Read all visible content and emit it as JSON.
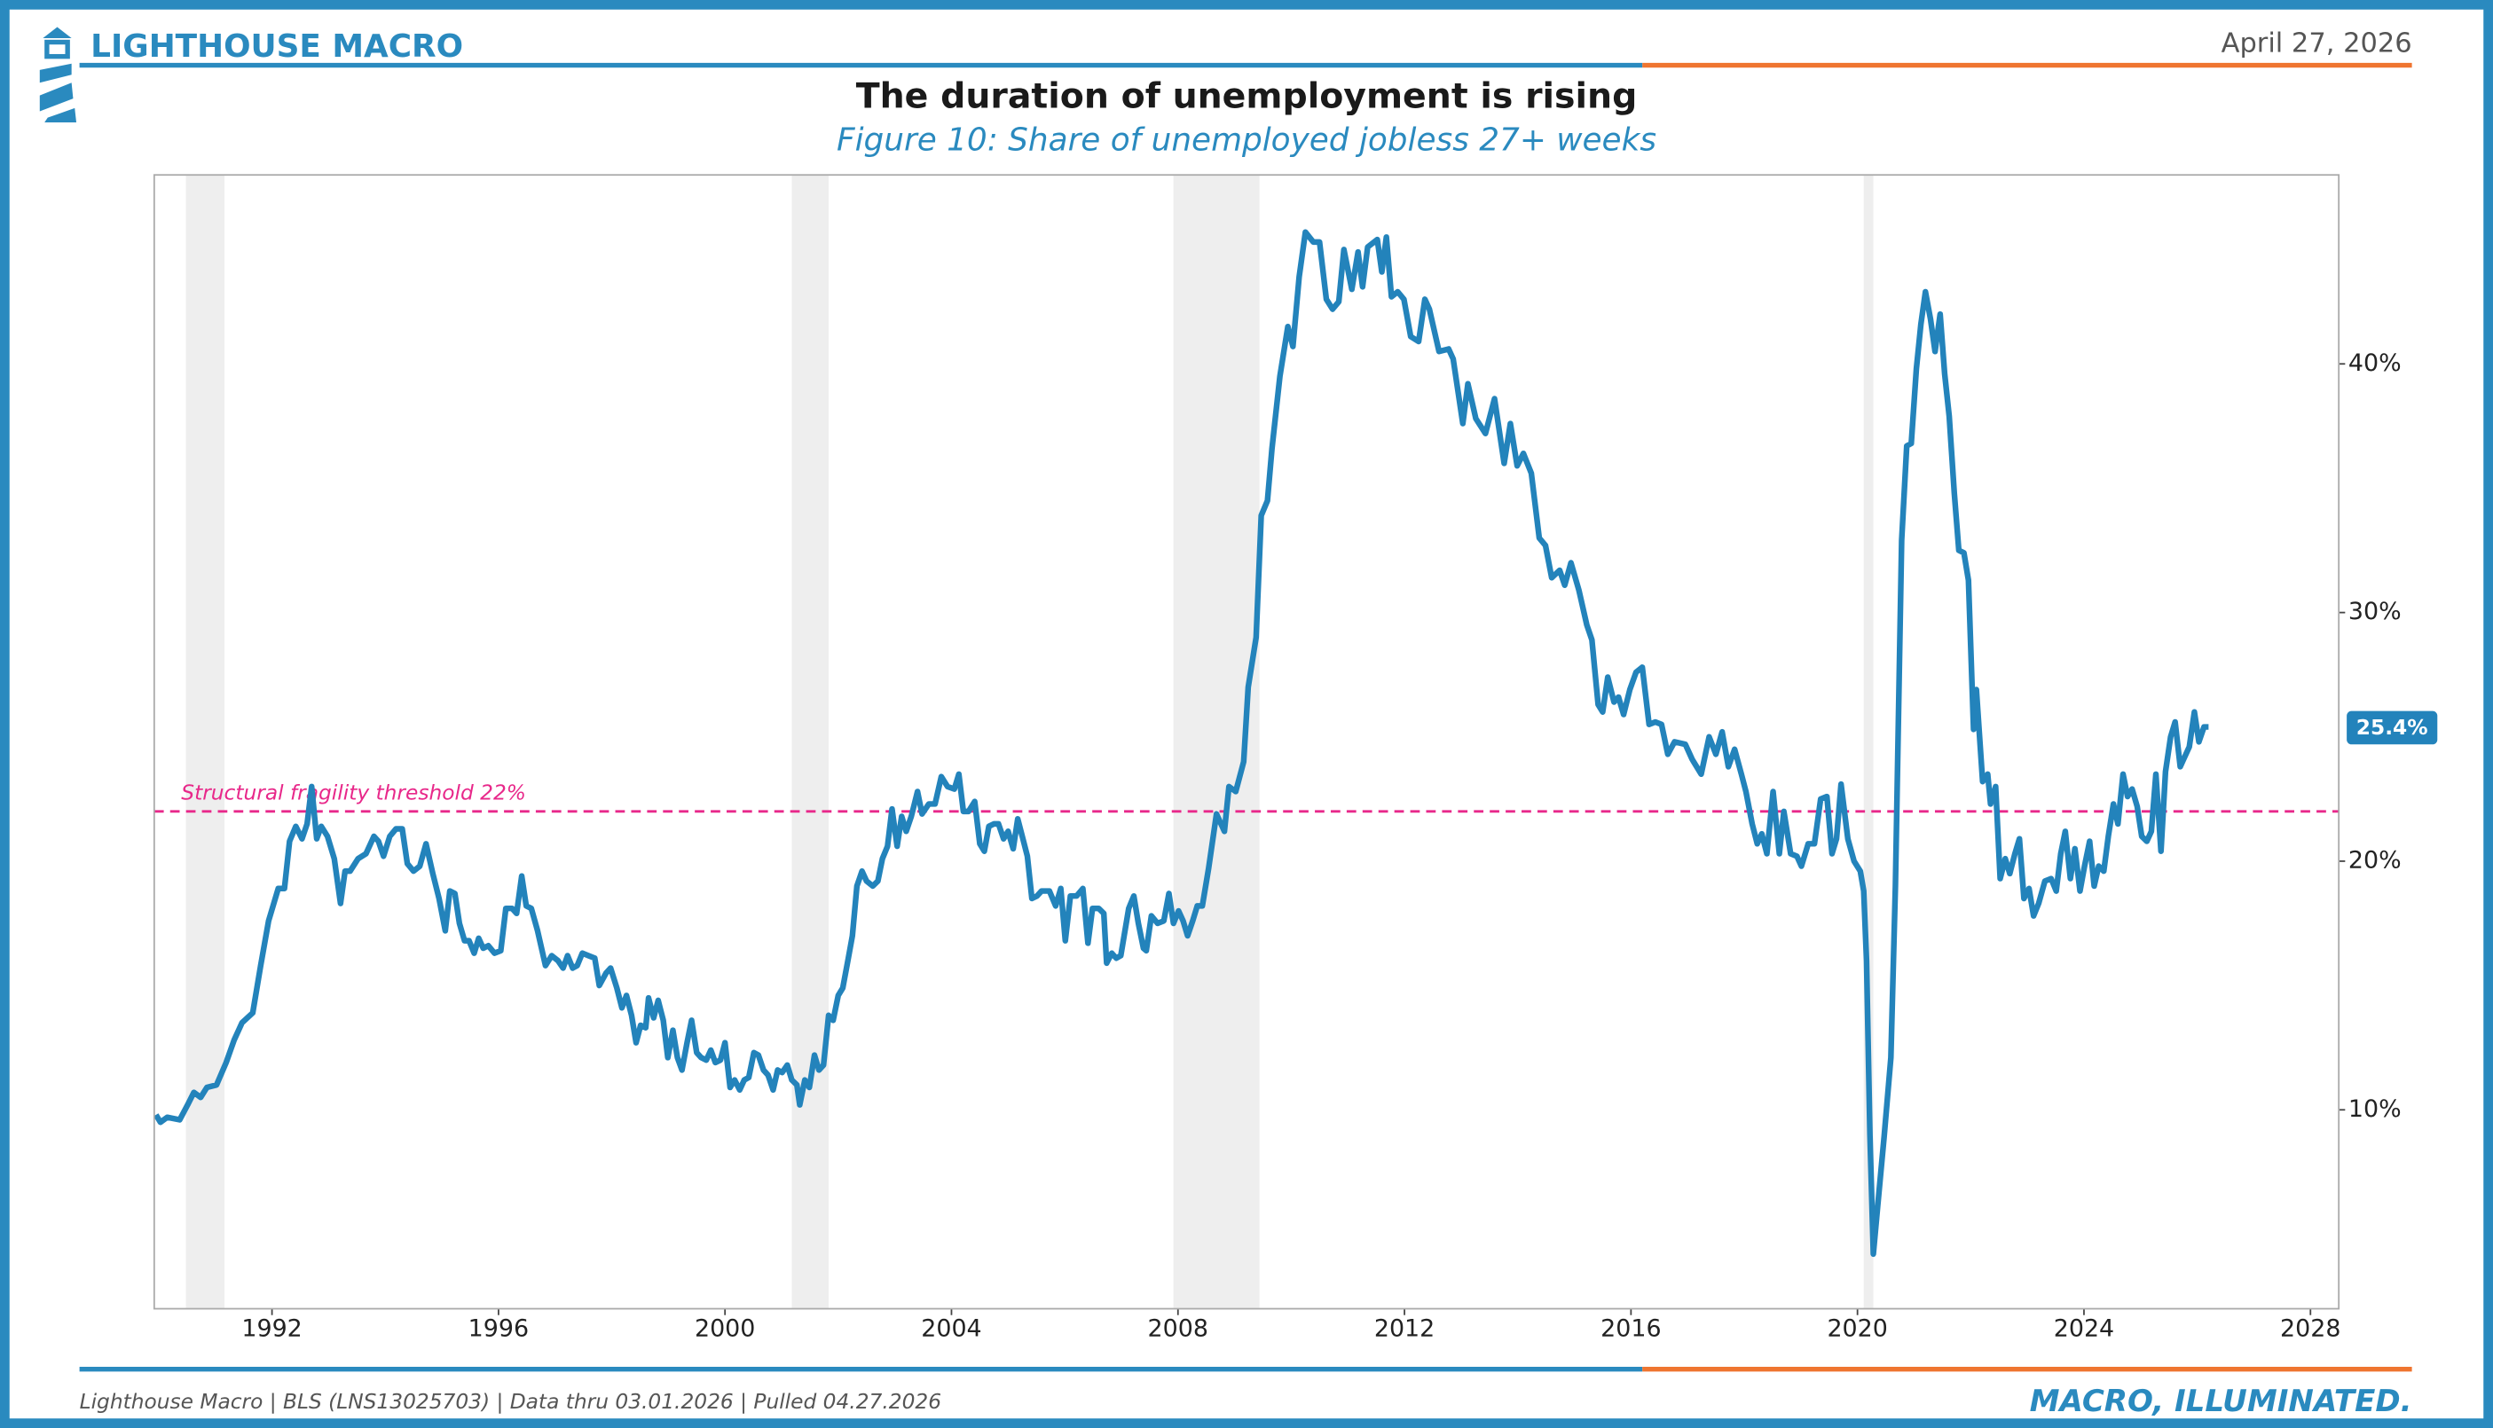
{
  "header": {
    "brand": "LIGHTHOUSE MACRO",
    "date": "April 27, 2026"
  },
  "footer": {
    "source": "Lighthouse Macro | BLS (LNS13025703) | Data thru 03.01.2026 | Pulled 04.27.2026",
    "tagline": "MACRO, ILLUMINATED."
  },
  "chart_data": {
    "type": "line",
    "title": "The duration of unemployment is rising",
    "subtitle": "Figure 10: Share of unemployed jobless 27+ weeks",
    "color": "#2383bb",
    "xlim": [
      1989.92,
      2028.5
    ],
    "ylim": [
      2,
      47.6
    ],
    "xticks": [
      1992,
      1996,
      2000,
      2004,
      2008,
      2012,
      2016,
      2020,
      2024,
      2028
    ],
    "yticks": [
      {
        "value": 10,
        "label": "10%"
      },
      {
        "value": 20,
        "label": "20%"
      },
      {
        "value": 30,
        "label": "30%"
      },
      {
        "value": 40,
        "label": "40%"
      }
    ],
    "grid": false,
    "recessions": [
      [
        1990.48,
        1991.16
      ],
      [
        2001.18,
        2001.83
      ],
      [
        2007.92,
        2009.44
      ],
      [
        2020.11,
        2020.28
      ]
    ],
    "threshold": {
      "value": 22,
      "label": "Structural fragility threshold 22%",
      "color": "#e8288a"
    },
    "end_label": {
      "value": 25.4,
      "label": "25.4%"
    },
    "x": [
      1989.95,
      1990.03,
      1990.15,
      1990.37,
      1990.51,
      1990.62,
      1990.74,
      1990.85,
      1991.02,
      1991.19,
      1991.33,
      1991.47,
      1991.66,
      1991.8,
      1991.94,
      1992.11,
      1992.22,
      1992.31,
      1992.42,
      1992.53,
      1992.62,
      1992.7,
      1992.79,
      1992.87,
      1992.98,
      1993.1,
      1993.21,
      1993.29,
      1993.38,
      1993.52,
      1993.66,
      1993.8,
      1993.88,
      1993.97,
      1994.08,
      1994.19,
      1994.3,
      1994.39,
      1994.5,
      1994.61,
      1994.72,
      1994.84,
      1994.95,
      1995.06,
      1995.14,
      1995.23,
      1995.31,
      1995.4,
      1995.48,
      1995.57,
      1995.65,
      1995.73,
      1995.82,
      1995.93,
      1996.04,
      1996.13,
      1996.24,
      1996.32,
      1996.41,
      1996.49,
      1996.58,
      1996.69,
      1996.77,
      1996.83,
      1996.94,
      1997.05,
      1997.14,
      1997.22,
      1997.31,
      1997.39,
      1997.48,
      1997.59,
      1997.7,
      1997.78,
      1997.9,
      1997.98,
      1998.09,
      1998.18,
      1998.26,
      1998.35,
      1998.43,
      1998.51,
      1998.6,
      1998.65,
      1998.74,
      1998.82,
      1998.91,
      1998.99,
      1999.08,
      1999.16,
      1999.24,
      1999.33,
      1999.41,
      1999.5,
      1999.58,
      1999.67,
      1999.75,
      1999.83,
      1999.92,
      2000.0,
      2000.09,
      2000.17,
      2000.26,
      2000.34,
      2000.42,
      2000.51,
      2000.59,
      2000.68,
      2000.76,
      2000.85,
      2000.93,
      2001.01,
      2001.1,
      2001.18,
      2001.27,
      2001.32,
      2001.41,
      2001.49,
      2001.58,
      2001.66,
      2001.74,
      2001.83,
      2001.91,
      2002.0,
      2002.08,
      2002.17,
      2002.25,
      2002.33,
      2002.42,
      2002.5,
      2002.61,
      2002.7,
      2002.78,
      2002.87,
      2002.95,
      2003.04,
      2003.12,
      2003.2,
      2003.29,
      2003.4,
      2003.48,
      2003.6,
      2003.71,
      2003.82,
      2003.93,
      2004.05,
      2004.13,
      2004.21,
      2004.3,
      2004.41,
      2004.5,
      2004.58,
      2004.66,
      2004.75,
      2004.83,
      2004.92,
      2005.0,
      2005.09,
      2005.17,
      2005.25,
      2005.34,
      2005.42,
      2005.51,
      2005.59,
      2005.73,
      2005.84,
      2005.93,
      2006.01,
      2006.1,
      2006.21,
      2006.32,
      2006.41,
      2006.49,
      2006.6,
      2006.69,
      2006.74,
      2006.83,
      2006.91,
      2006.99,
      2007.13,
      2007.22,
      2007.3,
      2007.39,
      2007.44,
      2007.53,
      2007.64,
      2007.75,
      2007.84,
      2007.92,
      2008.01,
      2008.09,
      2008.17,
      2008.26,
      2008.34,
      2008.43,
      2008.54,
      2008.68,
      2008.82,
      2008.9,
      2009.02,
      2009.16,
      2009.24,
      2009.38,
      2009.47,
      2009.58,
      2009.66,
      2009.8,
      2009.94,
      2010.03,
      2010.14,
      2010.25,
      2010.39,
      2010.5,
      2010.62,
      2010.73,
      2010.84,
      2010.93,
      2011.07,
      2011.18,
      2011.26,
      2011.35,
      2011.52,
      2011.6,
      2011.68,
      2011.77,
      2011.88,
      2011.99,
      2012.11,
      2012.25,
      2012.36,
      2012.44,
      2012.61,
      2012.78,
      2012.86,
      2013.03,
      2013.12,
      2013.26,
      2013.43,
      2013.59,
      2013.76,
      2013.87,
      2013.99,
      2014.1,
      2014.24,
      2014.38,
      2014.49,
      2014.6,
      2014.74,
      2014.83,
      2014.94,
      2015.08,
      2015.22,
      2015.31,
      2015.42,
      2015.5,
      2015.59,
      2015.7,
      2015.78,
      2015.87,
      2015.98,
      2016.09,
      2016.2,
      2016.32,
      2016.43,
      2016.54,
      2016.65,
      2016.77,
      2016.96,
      2017.08,
      2017.24,
      2017.38,
      2017.5,
      2017.61,
      2017.72,
      2017.83,
      2017.95,
      2018.03,
      2018.14,
      2018.23,
      2018.31,
      2018.4,
      2018.51,
      2018.62,
      2018.7,
      2018.82,
      2018.93,
      2019.01,
      2019.13,
      2019.24,
      2019.35,
      2019.46,
      2019.55,
      2019.63,
      2019.71,
      2019.83,
      2019.94,
      2020.05,
      2020.11,
      2020.16,
      2020.22,
      2020.28,
      2020.36,
      2020.47,
      2020.59,
      2020.67,
      2020.78,
      2020.87,
      2020.95,
      2021.04,
      2021.12,
      2021.2,
      2021.29,
      2021.37,
      2021.46,
      2021.54,
      2021.62,
      2021.71,
      2021.79,
      2021.88,
      2021.96,
      2022.05,
      2022.1,
      2022.21,
      2022.3,
      2022.35,
      2022.44,
      2022.52,
      2022.61,
      2022.69,
      2022.78,
      2022.86,
      2022.94,
      2023.03,
      2023.11,
      2023.2,
      2023.31,
      2023.42,
      2023.51,
      2023.59,
      2023.67,
      2023.76,
      2023.84,
      2023.93,
      2024.01,
      2024.1,
      2024.18,
      2024.26,
      2024.35,
      2024.43,
      2024.52,
      2024.6,
      2024.69,
      2024.77,
      2024.85,
      2024.94,
      2025.02,
      2025.11,
      2025.19,
      2025.27,
      2025.36,
      2025.44,
      2025.53,
      2025.61,
      2025.7,
      2025.78,
      2025.86,
      2025.95,
      2026.03,
      2026.12,
      2026.2
    ],
    "values": [
      9.8,
      9.5,
      9.7,
      9.6,
      10.2,
      10.7,
      10.5,
      10.9,
      11.0,
      11.9,
      12.8,
      13.5,
      13.9,
      15.8,
      17.6,
      18.9,
      18.9,
      20.8,
      21.4,
      20.9,
      21.5,
      23.0,
      20.9,
      21.4,
      21.0,
      20.1,
      18.3,
      19.6,
      19.6,
      20.1,
      20.3,
      21.0,
      20.8,
      20.2,
      21.0,
      21.3,
      21.3,
      19.9,
      19.6,
      19.8,
      20.7,
      19.5,
      18.5,
      17.2,
      18.8,
      18.7,
      17.5,
      16.8,
      16.8,
      16.3,
      16.9,
      16.5,
      16.6,
      16.3,
      16.4,
      18.1,
      18.1,
      17.9,
      19.4,
      18.2,
      18.1,
      17.2,
      16.4,
      15.8,
      16.2,
      16.0,
      15.7,
      16.2,
      15.7,
      15.8,
      16.3,
      16.2,
      16.1,
      15.0,
      15.5,
      15.7,
      14.9,
      14.1,
      14.6,
      13.8,
      12.7,
      13.4,
      13.3,
      14.5,
      13.7,
      14.4,
      13.6,
      12.1,
      13.2,
      12.1,
      11.6,
      12.7,
      13.6,
      12.3,
      12.1,
      12.0,
      12.4,
      11.9,
      12.0,
      12.7,
      10.9,
      11.2,
      10.8,
      11.2,
      11.3,
      12.3,
      12.2,
      11.6,
      11.4,
      10.8,
      11.6,
      11.5,
      11.8,
      11.2,
      11.0,
      10.2,
      11.2,
      10.9,
      12.2,
      11.6,
      11.8,
      13.8,
      13.6,
      14.6,
      14.9,
      16.0,
      17.0,
      19.0,
      19.6,
      19.2,
      19.0,
      19.2,
      20.1,
      20.6,
      22.1,
      20.6,
      21.8,
      21.2,
      21.8,
      22.8,
      21.9,
      22.3,
      22.3,
      23.4,
      23.0,
      22.9,
      23.5,
      22.0,
      22.0,
      22.4,
      20.7,
      20.4,
      21.4,
      21.5,
      21.5,
      20.9,
      21.2,
      20.5,
      21.7,
      21.0,
      20.2,
      18.5,
      18.6,
      18.8,
      18.8,
      18.2,
      18.9,
      16.8,
      18.6,
      18.6,
      18.9,
      16.7,
      18.1,
      18.1,
      17.9,
      15.9,
      16.3,
      16.1,
      16.2,
      18.1,
      18.6,
      17.5,
      16.5,
      16.4,
      17.8,
      17.5,
      17.6,
      18.7,
      17.5,
      18.0,
      17.6,
      17.0,
      17.6,
      18.2,
      18.2,
      19.7,
      21.9,
      21.2,
      23.0,
      22.8,
      24.0,
      27.0,
      29.0,
      33.9,
      34.5,
      36.6,
      39.5,
      41.5,
      40.7,
      43.5,
      45.3,
      44.9,
      44.9,
      42.6,
      42.2,
      42.5,
      44.6,
      43.0,
      44.5,
      43.1,
      44.7,
      45.0,
      43.7,
      45.1,
      42.7,
      42.9,
      42.6,
      41.1,
      40.9,
      42.6,
      42.2,
      40.5,
      40.6,
      40.2,
      37.6,
      39.2,
      37.8,
      37.2,
      38.6,
      36.0,
      37.6,
      35.9,
      36.4,
      35.6,
      33.0,
      32.7,
      31.4,
      31.7,
      31.1,
      32.0,
      30.9,
      29.5,
      28.9,
      26.3,
      26.0,
      27.4,
      26.4,
      26.6,
      25.9,
      26.9,
      27.6,
      27.8,
      25.5,
      25.6,
      25.5,
      24.3,
      24.8,
      24.7,
      24.1,
      23.5,
      25.0,
      24.3,
      25.2,
      23.8,
      24.5,
      23.5,
      22.8,
      21.5,
      20.7,
      21.1,
      20.3,
      22.8,
      20.3,
      22.0,
      20.3,
      20.2,
      19.8,
      20.7,
      20.7,
      22.5,
      22.6,
      20.3,
      20.9,
      23.1,
      20.9,
      20.0,
      19.6,
      18.8,
      16.0,
      9.0,
      4.2,
      6.2,
      8.9,
      12.1,
      19.0,
      32.9,
      36.7,
      36.8,
      39.8,
      41.6,
      42.9,
      41.8,
      40.5,
      42.0,
      39.6,
      37.9,
      34.8,
      32.5,
      32.4,
      31.3,
      25.3,
      26.9,
      23.2,
      23.5,
      22.3,
      23.0,
      19.3,
      20.1,
      19.5,
      20.3,
      20.9,
      18.5,
      18.9,
      17.8,
      18.3,
      19.2,
      19.3,
      18.8,
      20.3,
      21.2,
      19.3,
      20.5,
      18.8,
      19.8,
      20.8,
      19.0,
      19.8,
      19.6,
      21.0,
      22.3,
      21.5,
      23.5,
      22.6,
      22.9,
      22.2,
      21.0,
      20.8,
      21.2,
      23.5,
      20.4,
      23.6,
      25.0,
      25.6,
      23.8,
      24.2,
      24.6,
      26.0,
      24.8,
      25.4,
      25.4
    ]
  }
}
